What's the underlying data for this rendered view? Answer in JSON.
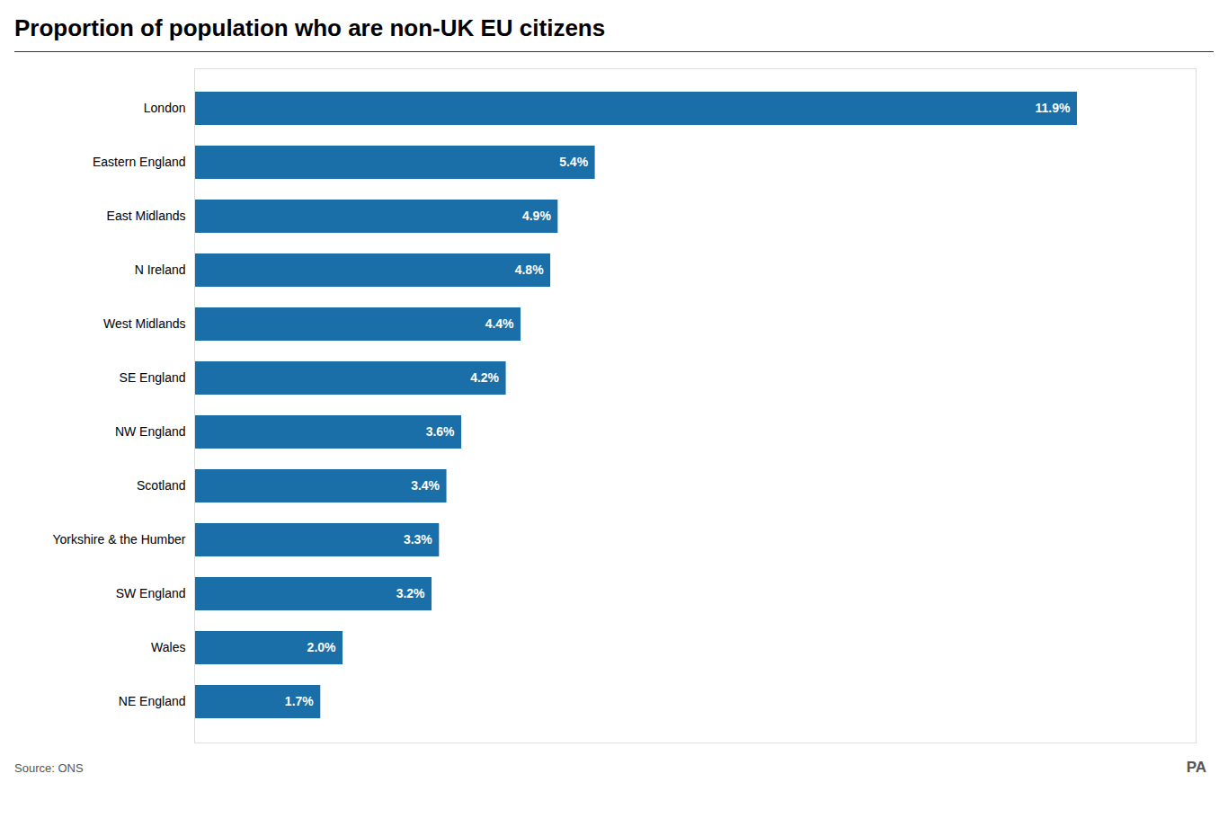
{
  "chart_data": {
    "type": "bar",
    "orientation": "horizontal",
    "title": "Proportion of population who are non-UK EU citizens",
    "categories": [
      "NE England",
      "Wales",
      "SW England",
      "Yorkshire & the Humber",
      "Scotland",
      "NW England",
      "SE England",
      "West Midlands",
      "N Ireland",
      "East Midlands",
      "Eastern England",
      "London"
    ],
    "values": [
      1.7,
      2.0,
      3.2,
      3.3,
      3.4,
      3.6,
      4.2,
      4.4,
      4.8,
      4.9,
      5.4,
      11.9
    ],
    "value_labels": [
      "1.7%",
      "2.0%",
      "3.2%",
      "3.3%",
      "3.4%",
      "3.6%",
      "4.2%",
      "4.4%",
      "4.8%",
      "4.9%",
      "5.4%",
      "11.9%"
    ],
    "color": "#1a6fa8",
    "xlim": [
      0,
      13.5
    ],
    "data_labels": true,
    "tick_labels": "y",
    "grid": false,
    "annotations": [
      "Source: ONS",
      "PA"
    ]
  }
}
